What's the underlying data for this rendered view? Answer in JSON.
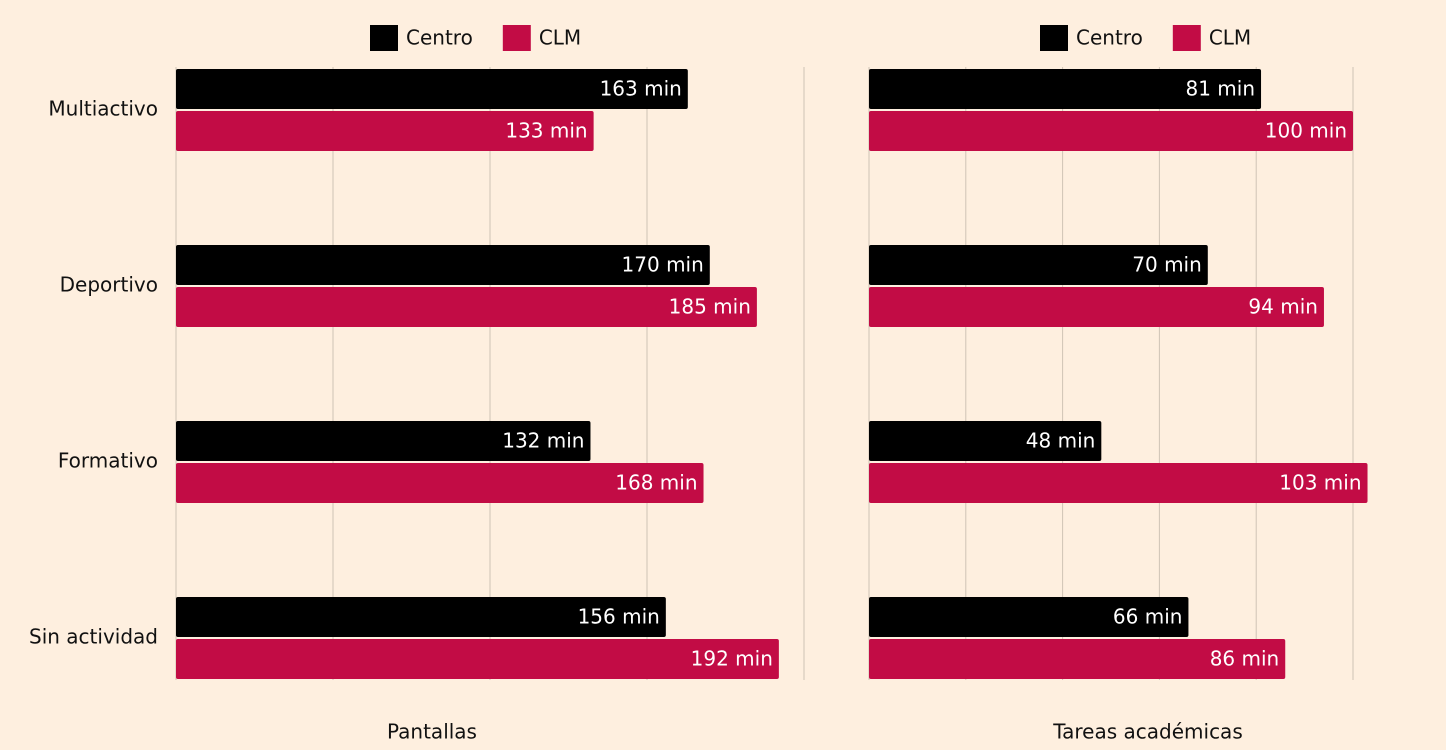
{
  "chart_data": [
    {
      "type": "bar",
      "orientation": "horizontal",
      "xlabel": "Pantallas",
      "categories": [
        "Multiactivo",
        "Deportivo",
        "Formativo",
        "Sin actividad"
      ],
      "series": [
        {
          "name": "Centro",
          "color": "#000000",
          "values": [
            163,
            170,
            132,
            156
          ],
          "value_labels": [
            "163 min",
            "170 min",
            "132 min",
            "156 min"
          ]
        },
        {
          "name": "CLM",
          "color": "#c20c45",
          "values": [
            133,
            185,
            168,
            192
          ],
          "value_labels": [
            "133 min",
            "185 min",
            "168 min",
            "192 min"
          ]
        }
      ],
      "xlim": [
        0,
        200
      ],
      "xticks": [
        0,
        50,
        100,
        150,
        200
      ],
      "grid": true,
      "legend": "top"
    },
    {
      "type": "bar",
      "orientation": "horizontal",
      "xlabel": "Tareas académicas",
      "series": [
        {
          "name": "Centro",
          "color": "#000000",
          "values": [
            81,
            70,
            48,
            66
          ],
          "value_labels": [
            "81 min",
            "70 min",
            "48 min",
            "66 min"
          ]
        },
        {
          "name": "CLM",
          "color": "#c20c45",
          "values": [
            100,
            94,
            103,
            86
          ],
          "value_labels": [
            "100 min",
            "94 min",
            "103 min",
            "86 min"
          ]
        }
      ],
      "xlim": [
        0,
        100
      ],
      "xticks": [
        0,
        20,
        40,
        60,
        80,
        100
      ],
      "grid": true,
      "legend": "top"
    }
  ]
}
